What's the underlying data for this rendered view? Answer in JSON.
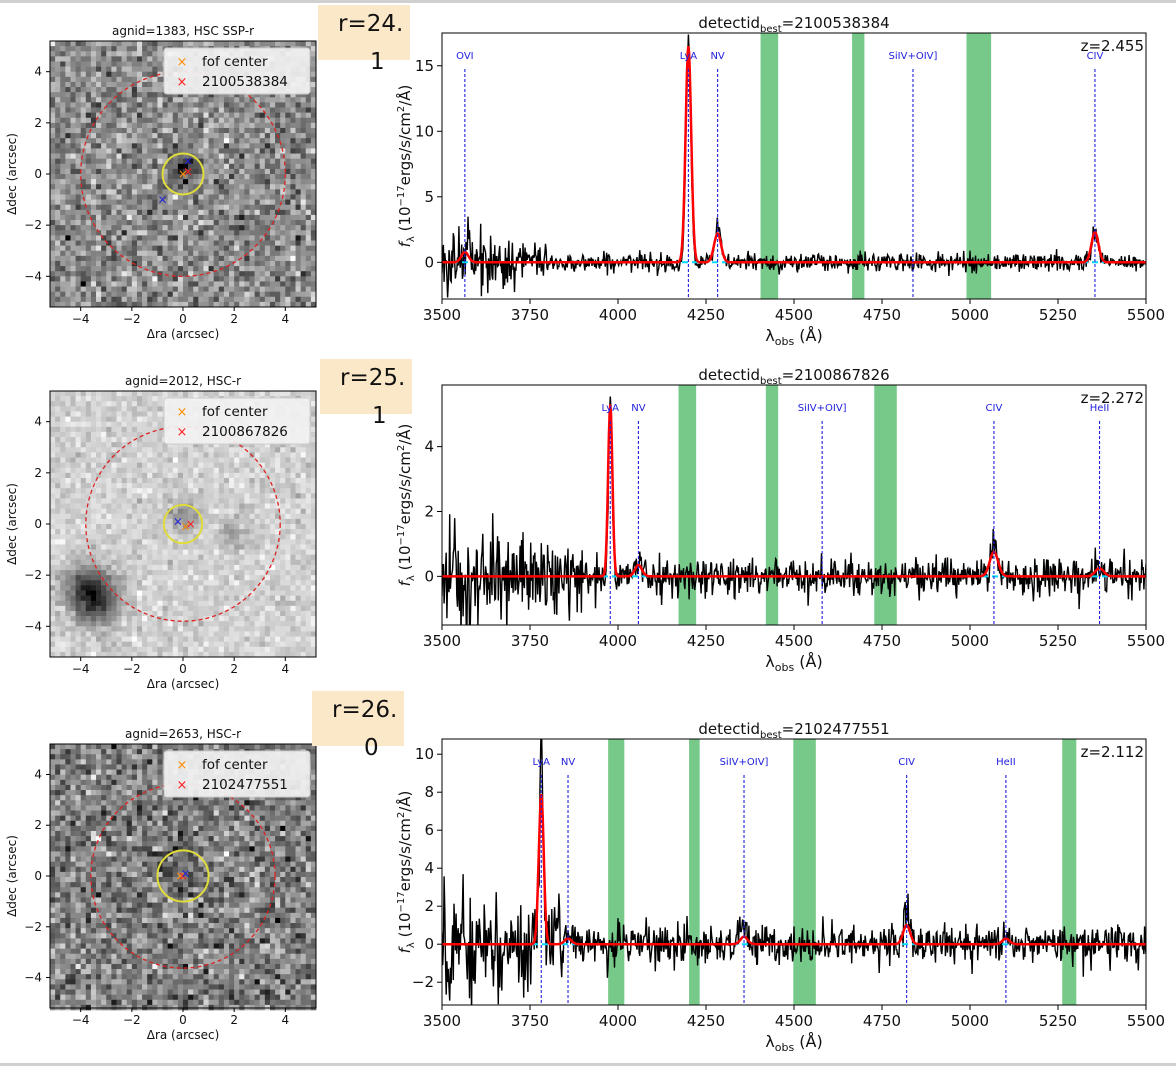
{
  "colors": {
    "flux": "#000000",
    "fit": "#ff0000",
    "continuum": "#00d8ff",
    "lines": "#2020dd",
    "mask": "#77c98a",
    "aperture_inner": "#e0dc3a",
    "aperture_outer": "#dd2222",
    "badge": "#fbe8c8"
  },
  "chart_data": [
    {
      "type": "heatmap",
      "title": "agnid=1383, HSC SSP-r",
      "xlabel": "Δra (arcsec)",
      "ylabel": "Δdec (arcsec)",
      "xlim": [
        -5.2,
        5.2
      ],
      "ylim": [
        -5.2,
        5.2
      ],
      "xticks": [
        -4,
        -2,
        0,
        2,
        4
      ],
      "yticks": [
        -4,
        -2,
        0,
        2,
        4
      ],
      "legend": [
        {
          "marker": "×",
          "label": "fof center",
          "color": "#ff8c00"
        },
        {
          "marker": "×",
          "label": "2100538384",
          "color": "#ff2020"
        }
      ],
      "legend_position": "top-right",
      "circles": [
        {
          "r": 4.0,
          "style": "dashed",
          "color": "#dd2222"
        },
        {
          "r": 0.8,
          "style": "solid",
          "color": "#e0dc3a"
        }
      ],
      "markers": [
        {
          "x": 0.0,
          "y": 0.0,
          "color": "#ff8c00"
        },
        {
          "x": 0.2,
          "y": 0.1,
          "color": "#ff2020"
        },
        {
          "x": -0.8,
          "y": -1.0,
          "color": "#2020dd"
        },
        {
          "x": 0.2,
          "y": 0.5,
          "color": "#2020dd"
        }
      ],
      "sources": [
        {
          "x": 0.1,
          "y": 0.3,
          "amp": 0.45,
          "sigma": 0.35
        }
      ],
      "noise": 0.28,
      "base": 0.55
    },
    {
      "type": "line",
      "title": "detectidbest=2100538384",
      "title_main": "detectid",
      "title_sub": "best",
      "title_tail": "=2100538384",
      "badge": [
        "r=24.",
        "1"
      ],
      "redshift_label": "z=2.455",
      "xlabel": "λobs (Å)",
      "ylabel": "fλ (10−17ergs/s/cm2/Å)",
      "xlim": [
        3500,
        5500
      ],
      "ylim": [
        -2.8,
        17.5
      ],
      "xticks": [
        3500,
        3750,
        4000,
        4250,
        4500,
        4750,
        5000,
        5250,
        5500
      ],
      "yticks": [
        0,
        5,
        10,
        15
      ],
      "masks": [
        [
          4405,
          4455
        ],
        [
          4665,
          4700
        ],
        [
          4990,
          5060
        ]
      ],
      "lines": [
        {
          "name": "OVI",
          "x": 3565
        },
        {
          "name": "LyA",
          "x": 4200
        },
        {
          "name": "NV",
          "x": 4283
        },
        {
          "name": "SiIV+OIV]",
          "x": 4838
        },
        {
          "name": "CIV",
          "x": 5355
        }
      ],
      "emission": [
        {
          "x": 3565,
          "amp": 1.0,
          "sigma": 9
        },
        {
          "x": 4200,
          "amp": 16.7,
          "sigma": 7
        },
        {
          "x": 4283,
          "amp": 2.6,
          "sigma": 9
        },
        {
          "x": 5355,
          "amp": 2.5,
          "sigma": 9
        }
      ],
      "fit_lines": [
        {
          "x": 3565,
          "amp": 0.8,
          "sigma": 10
        },
        {
          "x": 4200,
          "amp": 16.5,
          "sigma": 8
        },
        {
          "x": 4283,
          "amp": 2.2,
          "sigma": 10
        },
        {
          "x": 5355,
          "amp": 2.3,
          "sigma": 10
        }
      ],
      "noise": {
        "blue": 1.4,
        "red": 0.35,
        "knee": 3800
      }
    },
    {
      "type": "heatmap",
      "title": "agnid=2012, HSC-r",
      "xlabel": "Δra (arcsec)",
      "ylabel": "Δdec (arcsec)",
      "xlim": [
        -5.2,
        5.2
      ],
      "ylim": [
        -5.2,
        5.2
      ],
      "xticks": [
        -4,
        -2,
        0,
        2,
        4
      ],
      "yticks": [
        -4,
        -2,
        0,
        2,
        4
      ],
      "legend": [
        {
          "marker": "×",
          "label": "fof center",
          "color": "#ff8c00"
        },
        {
          "marker": "×",
          "label": "2100867826",
          "color": "#ff2020"
        }
      ],
      "legend_position": "top-right",
      "circles": [
        {
          "r": 3.8,
          "style": "dashed",
          "color": "#dd2222"
        },
        {
          "r": 0.75,
          "style": "solid",
          "color": "#e0dc3a"
        }
      ],
      "markers": [
        {
          "x": 0.1,
          "y": -0.1,
          "color": "#ff8c00"
        },
        {
          "x": 0.3,
          "y": 0.0,
          "color": "#ff2020"
        },
        {
          "x": -0.2,
          "y": 0.1,
          "color": "#2020dd"
        }
      ],
      "sources": [
        {
          "x": 0.0,
          "y": 0.3,
          "amp": 0.25,
          "sigma": 0.5
        },
        {
          "x": 2.0,
          "y": -0.4,
          "amp": 0.2,
          "sigma": 0.4
        },
        {
          "x": -3.4,
          "y": -3.0,
          "amp": 0.55,
          "sigma": 0.65
        },
        {
          "x": -3.8,
          "y": -2.4,
          "amp": 0.35,
          "sigma": 0.6
        }
      ],
      "noise": 0.12,
      "base": 0.82
    },
    {
      "type": "line",
      "title": "detectidbest=2100867826",
      "title_main": "detectid",
      "title_sub": "best",
      "title_tail": "=2100867826",
      "badge": [
        "r=25.",
        "1"
      ],
      "redshift_label": "z=2.272",
      "xlabel": "λobs (Å)",
      "ylabel": "fλ (10−17ergs/s/cm2/Å)",
      "xlim": [
        3500,
        5500
      ],
      "ylim": [
        -1.5,
        5.9
      ],
      "xticks": [
        3500,
        3750,
        4000,
        4250,
        4500,
        4750,
        5000,
        5250,
        5500
      ],
      "yticks": [
        0,
        2,
        4
      ],
      "masks": [
        [
          4172,
          4222
        ],
        [
          4420,
          4455
        ],
        [
          4728,
          4792
        ]
      ],
      "lines": [
        {
          "name": "LyA",
          "x": 3978
        },
        {
          "name": "NV",
          "x": 4058
        },
        {
          "name": "SiIV+OIV]",
          "x": 4580
        },
        {
          "name": "CIV",
          "x": 5068
        },
        {
          "name": "HeII",
          "x": 5368
        }
      ],
      "emission": [
        {
          "x": 3978,
          "amp": 5.5,
          "sigma": 5
        },
        {
          "x": 4058,
          "amp": 0.4,
          "sigma": 8
        },
        {
          "x": 5068,
          "amp": 1.2,
          "sigma": 8
        },
        {
          "x": 5368,
          "amp": 0.4,
          "sigma": 8
        }
      ],
      "fit_lines": [
        {
          "x": 3978,
          "amp": 5.3,
          "sigma": 6
        },
        {
          "x": 4058,
          "amp": 0.35,
          "sigma": 10
        },
        {
          "x": 5068,
          "amp": 0.75,
          "sigma": 12
        },
        {
          "x": 5368,
          "amp": 0.25,
          "sigma": 12
        }
      ],
      "noise": {
        "blue": 0.75,
        "red": 0.28,
        "knee": 3900
      }
    },
    {
      "type": "heatmap",
      "title": "agnid=2653, HSC-r",
      "xlabel": "Δra (arcsec)",
      "ylabel": "Δdec (arcsec)",
      "xlim": [
        -5.2,
        5.2
      ],
      "ylim": [
        -5.2,
        5.2
      ],
      "xticks": [
        -4,
        -2,
        0,
        2,
        4
      ],
      "yticks": [
        -4,
        -2,
        0,
        2,
        4
      ],
      "legend": [
        {
          "marker": "×",
          "label": "fof center",
          "color": "#ff8c00"
        },
        {
          "marker": "×",
          "label": "2102477551",
          "color": "#ff2020"
        }
      ],
      "legend_position": "top-right",
      "circles": [
        {
          "r": 3.6,
          "style": "dashed",
          "color": "#dd2222"
        },
        {
          "r": 1.0,
          "style": "solid",
          "color": "#e0dc3a"
        }
      ],
      "markers": [
        {
          "x": -0.1,
          "y": 0.0,
          "color": "#ff8c00"
        },
        {
          "x": 0.0,
          "y": 0.0,
          "color": "#ff2020"
        },
        {
          "x": 0.1,
          "y": 0.1,
          "color": "#2020dd"
        }
      ],
      "sources": [
        {
          "x": 0.0,
          "y": 0.0,
          "amp": 0.15,
          "sigma": 0.35
        }
      ],
      "noise": 0.3,
      "base": 0.5
    },
    {
      "type": "line",
      "title": "detectidbest=2102477551",
      "title_main": "detectid",
      "title_sub": "best",
      "title_tail": "=2102477551",
      "badge": [
        "r=26.",
        "0"
      ],
      "redshift_label": "z=2.112",
      "xlabel": "λobs (Å)",
      "ylabel": "fλ (10−17ergs/s/cm2/Å)",
      "xlim": [
        3500,
        5500
      ],
      "ylim": [
        -3.2,
        10.8
      ],
      "xticks": [
        3500,
        3750,
        4000,
        4250,
        4500,
        4750,
        5000,
        5250,
        5500
      ],
      "yticks": [
        -2,
        0,
        2,
        4,
        6,
        8,
        10
      ],
      "masks": [
        [
          3972,
          4018
        ],
        [
          4202,
          4232
        ],
        [
          4498,
          4562
        ],
        [
          5262,
          5302
        ]
      ],
      "lines": [
        {
          "name": "LyA",
          "x": 3782
        },
        {
          "name": "NV",
          "x": 3858
        },
        {
          "name": "SiIV+OIV]",
          "x": 4358
        },
        {
          "name": "CIV",
          "x": 4820
        },
        {
          "name": "HeII",
          "x": 5102
        }
      ],
      "emission": [
        {
          "x": 3782,
          "amp": 9.8,
          "sigma": 5
        },
        {
          "x": 3858,
          "amp": 0.6,
          "sigma": 8
        },
        {
          "x": 4358,
          "amp": 0.9,
          "sigma": 8
        },
        {
          "x": 4820,
          "amp": 1.8,
          "sigma": 8
        },
        {
          "x": 5102,
          "amp": 0.5,
          "sigma": 8
        }
      ],
      "fit_lines": [
        {
          "x": 3782,
          "amp": 7.9,
          "sigma": 7
        },
        {
          "x": 3858,
          "amp": 0.3,
          "sigma": 10
        },
        {
          "x": 4358,
          "amp": 0.4,
          "sigma": 10
        },
        {
          "x": 4820,
          "amp": 1.0,
          "sigma": 10
        },
        {
          "x": 5102,
          "amp": 0.3,
          "sigma": 10
        }
      ],
      "noise": {
        "blue": 1.6,
        "red": 0.5,
        "knee": 3850
      }
    }
  ]
}
